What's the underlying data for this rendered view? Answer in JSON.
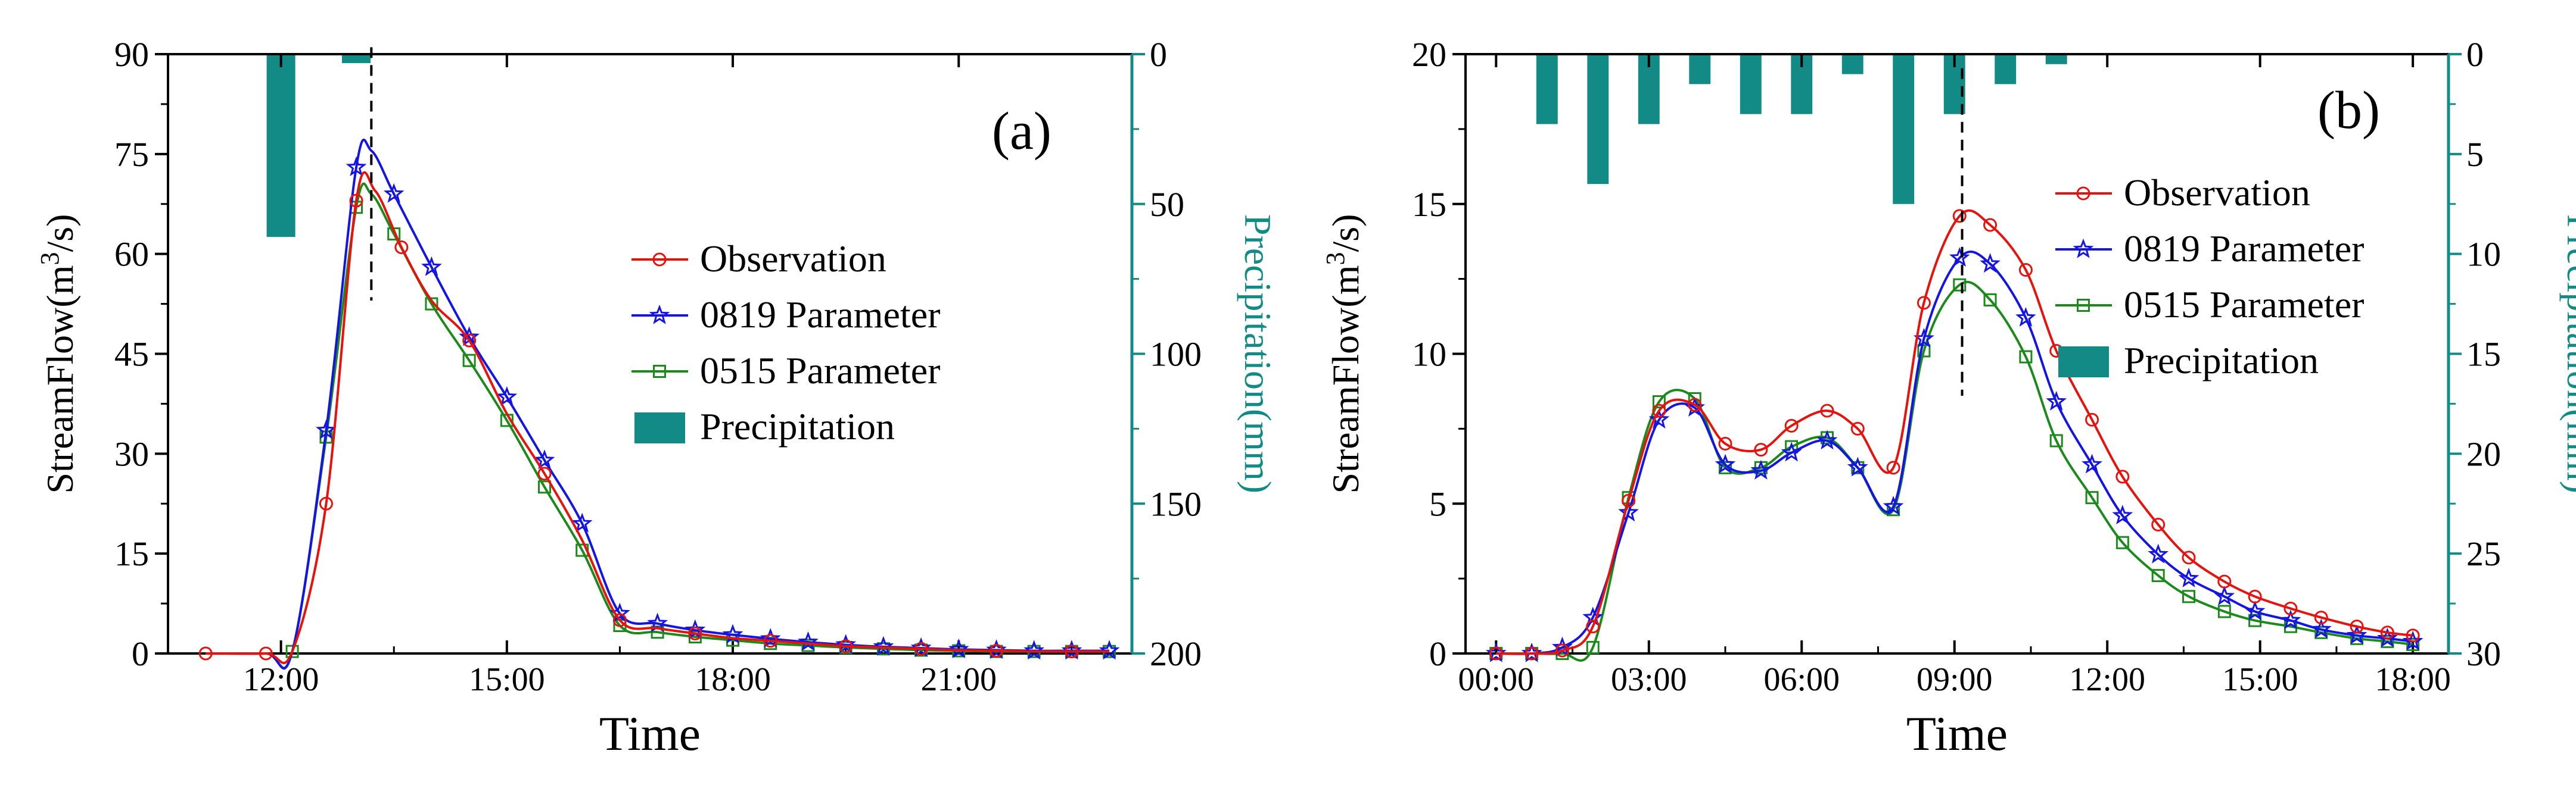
{
  "colors": {
    "observation": "#e8120c",
    "p0819": "#1414e6",
    "p0515": "#1a8a1a",
    "precip": "#128a86",
    "axis": "#000000",
    "precip_axis": "#128a86"
  },
  "chart_data": [
    {
      "panel_label": "(a)",
      "type": "line",
      "xlabel": "Time",
      "ylabel_left": "StreamFlow(m",
      "ylabel_left_sup": "3",
      "ylabel_left_tail": "/s)",
      "ylabel_right": "Precipitation(mm)",
      "xlim": [
        10.5,
        23.3
      ],
      "ylim_left": [
        0,
        90
      ],
      "ylim_right": [
        0,
        200
      ],
      "xticks": [
        12,
        15,
        18,
        21
      ],
      "xtick_labels": [
        "12:00",
        "15:00",
        "18:00",
        "21:00"
      ],
      "yticks_left": [
        0,
        15,
        30,
        45,
        60,
        75,
        90
      ],
      "ytick_labels_left": [
        "0",
        "15",
        "30",
        "45",
        "60",
        "75",
        "90"
      ],
      "yticks_right": [
        0,
        50,
        100,
        150,
        200
      ],
      "ytick_labels_right": [
        "0",
        "50",
        "100",
        "150",
        "200"
      ],
      "peak_marker_x": 13.2,
      "legend": {
        "observation": "Observation",
        "p0819": "0819 Parameter",
        "p0515": "0515 Parameter",
        "precip": "Precipitation"
      },
      "precipitation": [
        {
          "x": 12.0,
          "value": 61
        },
        {
          "x": 13.0,
          "value": 3
        }
      ],
      "series": [
        {
          "key": "observation",
          "name": "Observation",
          "marker": "circle",
          "x": [
            11.0,
            11.8,
            12.15,
            12.6,
            13.0,
            13.25,
            13.6,
            14.0,
            14.5,
            15.0,
            15.5,
            16.0,
            16.5,
            17.0,
            17.5,
            18.0,
            18.5,
            19.0,
            19.5,
            20.0,
            20.5,
            21.0,
            21.5,
            22.0,
            22.5,
            23.0
          ],
          "values": [
            0,
            0,
            0.3,
            22.5,
            68,
            69.5,
            61,
            53,
            47,
            36,
            27,
            17,
            5,
            3.8,
            3,
            2.3,
            1.9,
            1.5,
            1.1,
            0.9,
            0.7,
            0.5,
            0.4,
            0.3,
            0.3,
            0.3
          ],
          "markers": [
            11.0,
            11.8,
            12.6,
            13.0,
            13.6,
            14.5,
            15.5,
            16.5,
            17.5,
            18.5,
            19.5,
            20.5,
            21.5,
            22.5
          ]
        },
        {
          "key": "p0819",
          "name": "0819 Parameter",
          "marker": "star",
          "x": [
            11.0,
            11.8,
            12.15,
            12.6,
            13.0,
            13.2,
            13.5,
            14.0,
            14.5,
            15.0,
            15.5,
            16.0,
            16.5,
            17.0,
            17.5,
            18.0,
            18.5,
            19.0,
            19.5,
            20.0,
            20.5,
            21.0,
            21.5,
            22.0,
            22.5,
            23.0
          ],
          "values": [
            0,
            0,
            0.3,
            33.5,
            73,
            75.5,
            69,
            58,
            47.5,
            38.5,
            29,
            19.5,
            6,
            4.5,
            3.5,
            2.8,
            2.2,
            1.7,
            1.3,
            1.0,
            0.8,
            0.6,
            0.5,
            0.4,
            0.4,
            0.4
          ],
          "markers": [
            12.6,
            13.0,
            13.5,
            14.0,
            14.5,
            15.0,
            15.5,
            16.0,
            16.5,
            17.0,
            17.5,
            18.0,
            18.5,
            19.0,
            19.5,
            20.0,
            20.5,
            21.0,
            21.5,
            22.0,
            22.5,
            23.0
          ]
        },
        {
          "key": "p0515",
          "name": "0515 Parameter",
          "marker": "square",
          "x": [
            11.0,
            11.8,
            12.15,
            12.6,
            13.0,
            13.2,
            13.5,
            14.0,
            14.5,
            15.0,
            15.5,
            16.0,
            16.5,
            17.0,
            17.5,
            18.0,
            18.5,
            19.0,
            19.5,
            20.0,
            20.5,
            21.0,
            21.5,
            22.0,
            22.5,
            23.0
          ],
          "values": [
            0,
            0,
            0.3,
            32.5,
            67,
            69,
            63,
            52.5,
            44,
            35,
            25,
            15.5,
            4.2,
            3.2,
            2.5,
            2.0,
            1.5,
            1.2,
            0.9,
            0.7,
            0.5,
            0.4,
            0.3,
            0.3,
            0.3,
            0.3
          ],
          "markers": [
            12.15,
            12.6,
            13.0,
            13.5,
            14.0,
            14.5,
            15.0,
            15.5,
            16.0,
            16.5,
            17.0,
            17.5,
            18.0,
            18.5,
            19.0,
            19.5,
            20.0,
            20.5,
            21.0,
            21.5,
            22.0,
            22.5,
            23.0
          ]
        }
      ]
    },
    {
      "panel_label": "(b)",
      "type": "line",
      "xlabel": "Time",
      "ylabel_left": "StreamFlow(m",
      "ylabel_left_sup": "3",
      "ylabel_left_tail": "/s)",
      "ylabel_right": "Precipitation(mm)",
      "xlim": [
        -0.6,
        18.7
      ],
      "ylim_left": [
        0,
        20
      ],
      "ylim_right": [
        0,
        30
      ],
      "xticks": [
        0,
        3,
        6,
        9,
        12,
        15,
        18
      ],
      "xtick_labels": [
        "00:00",
        "03:00",
        "06:00",
        "09:00",
        "12:00",
        "15:00",
        "18:00"
      ],
      "yticks_left": [
        0,
        5,
        10,
        15,
        20
      ],
      "ytick_labels_left": [
        "0",
        "5",
        "10",
        "15",
        "20"
      ],
      "yticks_right": [
        0,
        5,
        10,
        15,
        20,
        25,
        30
      ],
      "ytick_labels_right": [
        "0",
        "5",
        "10",
        "15",
        "20",
        "25",
        "30"
      ],
      "peak_marker_x": 9.15,
      "legend": {
        "observation": "Observation",
        "p0819": "0819 Parameter",
        "p0515": "0515 Parameter",
        "precip": "Precipitation"
      },
      "precipitation": [
        {
          "x": 1.0,
          "value": 3.5
        },
        {
          "x": 2.0,
          "value": 6.5
        },
        {
          "x": 3.0,
          "value": 3.5
        },
        {
          "x": 4.0,
          "value": 1.5
        },
        {
          "x": 5.0,
          "value": 3.0
        },
        {
          "x": 6.0,
          "value": 3.0
        },
        {
          "x": 7.0,
          "value": 1.0
        },
        {
          "x": 8.0,
          "value": 7.5
        },
        {
          "x": 9.0,
          "value": 3.0
        },
        {
          "x": 10.0,
          "value": 1.5
        },
        {
          "x": 11.0,
          "value": 0.5
        }
      ],
      "series": [
        {
          "key": "observation",
          "name": "Observation",
          "marker": "circle",
          "x": [
            0,
            0.7,
            1.3,
            1.9,
            2.6,
            3.2,
            3.9,
            4.5,
            5.2,
            5.8,
            6.5,
            7.1,
            7.8,
            8.4,
            9.1,
            9.7,
            10.4,
            11.0,
            11.7,
            12.3,
            13.0,
            13.6,
            14.3,
            14.9,
            15.6,
            16.2,
            16.9,
            17.5,
            18.0
          ],
          "values": [
            0,
            0,
            0.1,
            0.9,
            5.1,
            8.1,
            8.3,
            7.0,
            6.8,
            7.6,
            8.1,
            7.5,
            6.2,
            11.7,
            14.6,
            14.3,
            12.8,
            10.1,
            7.8,
            5.9,
            4.3,
            3.2,
            2.4,
            1.9,
            1.5,
            1.2,
            0.9,
            0.7,
            0.6
          ],
          "markers": [
            0,
            0.7,
            1.3,
            1.9,
            2.6,
            3.2,
            3.9,
            4.5,
            5.2,
            5.8,
            6.5,
            7.1,
            7.8,
            8.4,
            9.1,
            9.7,
            10.4,
            11.0,
            11.7,
            12.3,
            13.0,
            13.6,
            14.3,
            14.9,
            15.6,
            16.2,
            16.9,
            17.5,
            18.0
          ]
        },
        {
          "key": "p0819",
          "name": "0819 Parameter",
          "marker": "star",
          "x": [
            0,
            0.7,
            1.3,
            1.9,
            2.6,
            3.2,
            3.9,
            4.5,
            5.2,
            5.8,
            6.5,
            7.1,
            7.8,
            8.4,
            9.1,
            9.7,
            10.4,
            11.0,
            11.7,
            12.3,
            13.0,
            13.6,
            14.3,
            14.9,
            15.6,
            16.2,
            16.9,
            17.5,
            18.0
          ],
          "values": [
            0,
            0,
            0.2,
            1.2,
            4.7,
            7.8,
            8.2,
            6.3,
            6.1,
            6.7,
            7.1,
            6.2,
            4.9,
            10.5,
            13.2,
            13.0,
            11.2,
            8.4,
            6.3,
            4.6,
            3.3,
            2.5,
            1.9,
            1.4,
            1.1,
            0.8,
            0.6,
            0.5,
            0.4
          ],
          "markers": [
            0,
            0.7,
            1.3,
            1.9,
            2.6,
            3.2,
            3.9,
            4.5,
            5.2,
            5.8,
            6.5,
            7.1,
            7.8,
            8.4,
            9.1,
            9.7,
            10.4,
            11.0,
            11.7,
            12.3,
            13.0,
            13.6,
            14.3,
            14.9,
            15.6,
            16.2,
            16.9,
            17.5,
            18.0
          ]
        },
        {
          "key": "p0515",
          "name": "0515 Parameter",
          "marker": "square",
          "x": [
            0,
            0.7,
            1.3,
            1.9,
            2.6,
            3.2,
            3.9,
            4.5,
            5.2,
            5.8,
            6.5,
            7.1,
            7.8,
            8.4,
            9.1,
            9.7,
            10.4,
            11.0,
            11.7,
            12.3,
            13.0,
            13.6,
            14.3,
            14.9,
            15.6,
            16.2,
            16.9,
            17.5,
            18.0
          ],
          "values": [
            0,
            0,
            0,
            0.2,
            5.2,
            8.4,
            8.5,
            6.2,
            6.2,
            6.9,
            7.2,
            6.2,
            4.8,
            10.1,
            12.3,
            11.8,
            9.9,
            7.1,
            5.2,
            3.7,
            2.6,
            1.9,
            1.4,
            1.1,
            0.9,
            0.7,
            0.5,
            0.4,
            0.3
          ],
          "markers": [
            0,
            0.7,
            1.3,
            1.9,
            2.6,
            3.2,
            3.9,
            4.5,
            5.2,
            5.8,
            6.5,
            7.1,
            7.8,
            8.4,
            9.1,
            9.7,
            10.4,
            11.0,
            11.7,
            12.3,
            13.0,
            13.6,
            14.3,
            14.9,
            15.6,
            16.2,
            16.9,
            17.5,
            18.0
          ]
        }
      ]
    }
  ]
}
